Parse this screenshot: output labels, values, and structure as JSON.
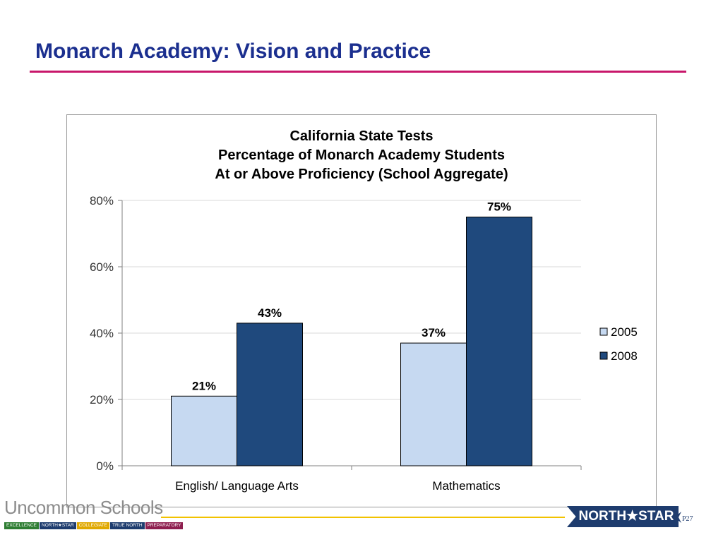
{
  "slide": {
    "title": "Monarch Academy: Vision and Practice",
    "page_number": "P27"
  },
  "footer": {
    "brand": "Uncommon Schools",
    "badge_text": "NORTH★STAR",
    "tags": [
      {
        "label": "EXCELLENCE",
        "color": "#2e7d32"
      },
      {
        "label": "NORTH★STAR",
        "color": "#1e3c6e"
      },
      {
        "label": "COLLEGIATE",
        "color": "#e0a800"
      },
      {
        "label": "TRUE NORTH",
        "color": "#1e3c6e"
      },
      {
        "label": "PREPARATORY",
        "color": "#8e1f4f"
      }
    ]
  },
  "chart_data": {
    "type": "bar",
    "title_lines": [
      "California State Tests",
      "Percentage of Monarch Academy Students",
      "At or Above Proficiency (School Aggregate)"
    ],
    "categories": [
      "English/ Language Arts",
      "Mathematics"
    ],
    "series": [
      {
        "name": "2005",
        "values": [
          21,
          37
        ],
        "labels": [
          "21%",
          "37%"
        ],
        "color": "#c6d9f1"
      },
      {
        "name": "2008",
        "values": [
          43,
          75
        ],
        "labels": [
          "43%",
          "75%"
        ],
        "color": "#1f497d"
      }
    ],
    "y_ticks": [
      {
        "value": 0,
        "label": "0%"
      },
      {
        "value": 20,
        "label": "20%"
      },
      {
        "value": 40,
        "label": "40%"
      },
      {
        "value": 60,
        "label": "60%"
      },
      {
        "value": 80,
        "label": "80%"
      }
    ],
    "ylim": [
      0,
      80
    ],
    "grid": true,
    "legend_position": "right"
  }
}
